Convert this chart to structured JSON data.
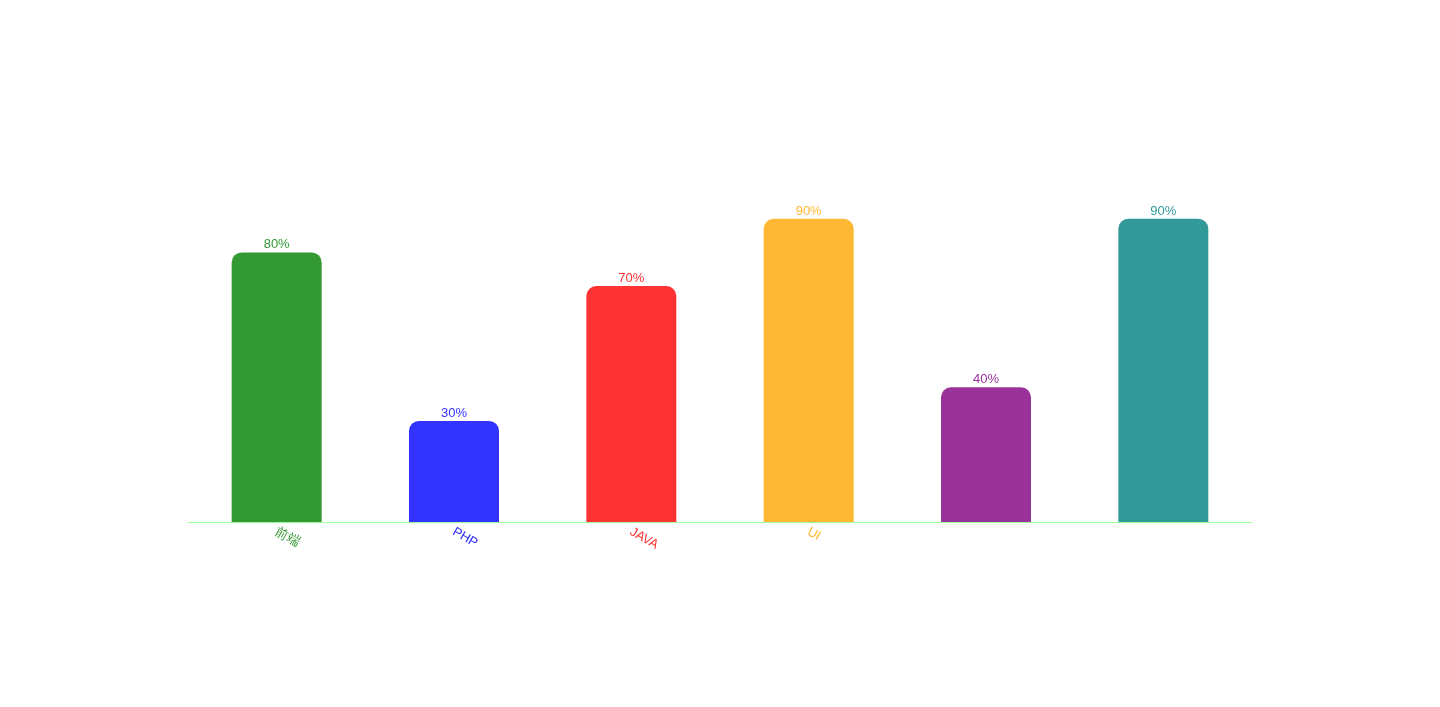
{
  "chart_data": {
    "type": "bar",
    "categories": [
      "前端",
      "PHP",
      "JAVA",
      "UI",
      null,
      null
    ],
    "values": [
      80,
      30,
      70,
      90,
      40,
      90
    ],
    "colors": [
      "#339933",
      "#3333ff",
      "#ff3333",
      "#ffb833",
      "#993399",
      "#339999"
    ],
    "value_labels": [
      "80%",
      "30%",
      "70%",
      "90%",
      "40%",
      "90%"
    ]
  }
}
